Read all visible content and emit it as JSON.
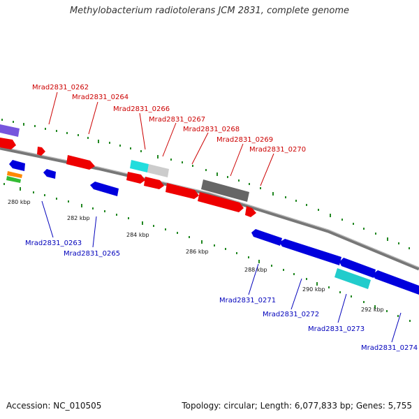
{
  "title": "Methylobacterium radiotolerans JCM 2831, complete genome",
  "footer": {
    "accession": "Accession: NC_010505",
    "topology": "Topology: circular; Length: 6,077,833 bp; Genes: 5,755"
  },
  "colors": {
    "forward_gene": "#ee0000",
    "reverse_gene": "#0000dd",
    "forward_label": "#cc0000",
    "reverse_label": "#0000bb",
    "backbone": "#888888",
    "tick": "#228822",
    "cyan_feature": "#22dddd",
    "gray_feature": "#666666",
    "lightgray_feature": "#cccccc",
    "purple_feature": "#7755dd"
  },
  "forward_labels": [
    "Mrad2831_0262",
    "Mrad2831_0264",
    "Mrad2831_0266",
    "Mrad2831_0267",
    "Mrad2831_0268",
    "Mrad2831_0269",
    "Mrad2831_0270"
  ],
  "reverse_labels": [
    "Mrad2831_0263",
    "Mrad2831_0265",
    "Mrad2831_0271",
    "Mrad2831_0272",
    "Mrad2831_0273",
    "Mrad2831_0274"
  ],
  "scale_labels": [
    "280 kbp",
    "282 kbp",
    "284 kbp",
    "286 kbp",
    "288 kbp",
    "290 kbp",
    "292 kbp"
  ]
}
